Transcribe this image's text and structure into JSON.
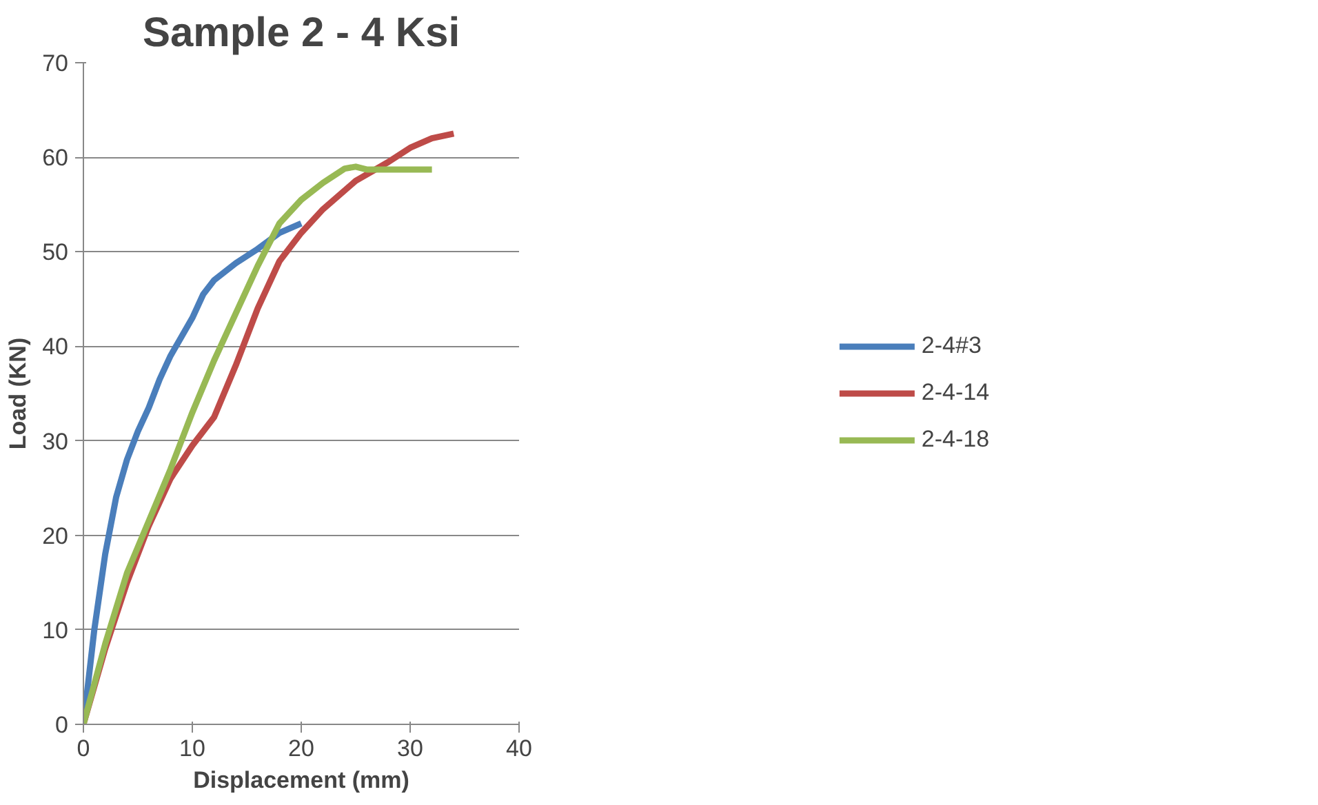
{
  "chart_data": {
    "type": "line",
    "title": "Sample 2 - 4 Ksi",
    "xlabel": "Displacement (mm)",
    "ylabel": "Load (KN)",
    "xlim": [
      0,
      40
    ],
    "xticks": [
      0,
      10,
      20,
      30,
      40
    ],
    "ylim": [
      0,
      70
    ],
    "yticks": [
      0,
      10,
      20,
      30,
      40,
      50,
      60,
      70
    ],
    "grid": "y",
    "legend": "right",
    "marker": "none",
    "line_style": "solid",
    "series": [
      {
        "name": "2-4#3",
        "color": "#4a7ebb",
        "x": [
          0,
          1,
          2,
          3,
          4,
          5,
          6,
          7,
          8,
          9,
          10,
          11,
          12,
          14,
          16,
          18,
          20
        ],
        "values": [
          0,
          10,
          18,
          24,
          28,
          31,
          33.5,
          36.5,
          39,
          41,
          43,
          45.5,
          47,
          48.8,
          50.3,
          52,
          53
        ]
      },
      {
        "name": "2-4-14",
        "color": "#be4b48",
        "x": [
          0,
          2,
          4,
          6,
          8,
          10,
          12,
          14,
          16,
          18,
          20,
          22,
          25,
          28,
          30,
          32,
          34
        ],
        "values": [
          0,
          8,
          15,
          21,
          26,
          29.5,
          32.5,
          38,
          44,
          49,
          52,
          54.5,
          57.5,
          59.5,
          61,
          62,
          62.5
        ]
      },
      {
        "name": "2-4-18",
        "color": "#98b954",
        "x": [
          0,
          2,
          4,
          6,
          8,
          10,
          12,
          14,
          16,
          18,
          20,
          22,
          24,
          25,
          26,
          32
        ],
        "values": [
          0,
          8.5,
          16,
          21.5,
          27,
          33,
          38.5,
          43.5,
          48.5,
          53,
          55.5,
          57.3,
          58.8,
          59,
          58.7,
          58.7
        ]
      }
    ]
  }
}
